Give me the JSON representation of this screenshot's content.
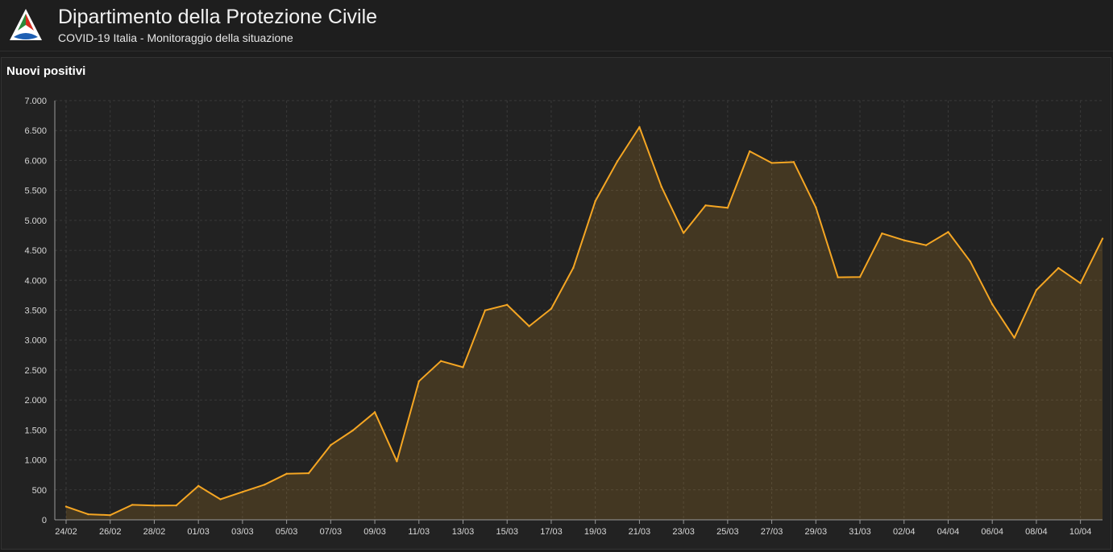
{
  "header": {
    "title": "Dipartimento della Protezione Civile",
    "subtitle": "COVID-19 Italia - Monitoraggio della situazione",
    "logo_icon": "protezione-civile-logo-icon"
  },
  "panel": {
    "title": "Nuovi positivi"
  },
  "colors": {
    "line": "#f5a623",
    "area": "#3a2f24",
    "background": "#222222",
    "grid": "#3a3a3a"
  },
  "chart_data": {
    "type": "area",
    "title": "Nuovi positivi",
    "xlabel": "",
    "ylabel": "",
    "ylim": [
      0,
      7000
    ],
    "yticks": [
      0,
      500,
      1000,
      1500,
      2000,
      2500,
      3000,
      3500,
      4000,
      4500,
      5000,
      5500,
      6000,
      6500,
      7000
    ],
    "ytick_labels": [
      "0",
      "500",
      "1.000",
      "1.500",
      "2.000",
      "2.500",
      "3.000",
      "3.500",
      "4.000",
      "4.500",
      "5.000",
      "5.500",
      "6.000",
      "6.500",
      "7.000"
    ],
    "grid": true,
    "legend": "none",
    "x": [
      "24/02",
      "25/02",
      "26/02",
      "27/02",
      "28/02",
      "29/02",
      "01/03",
      "02/03",
      "03/03",
      "04/03",
      "05/03",
      "06/03",
      "07/03",
      "08/03",
      "09/03",
      "10/03",
      "11/03",
      "12/03",
      "13/03",
      "14/03",
      "15/03",
      "16/03",
      "17/03",
      "18/03",
      "19/03",
      "20/03",
      "21/03",
      "22/03",
      "23/03",
      "24/03",
      "25/03",
      "26/03",
      "27/03",
      "28/03",
      "29/03",
      "30/03",
      "31/03",
      "01/04",
      "02/04",
      "03/04",
      "04/04",
      "05/04",
      "06/04",
      "07/04",
      "08/04",
      "09/04",
      "10/04",
      "11/04"
    ],
    "xtick_labels": [
      "24/02",
      "26/02",
      "28/02",
      "01/03",
      "03/03",
      "05/03",
      "07/03",
      "09/03",
      "11/03",
      "13/03",
      "15/03",
      "17/03",
      "19/03",
      "21/03",
      "23/03",
      "25/03",
      "27/03",
      "29/03",
      "31/03",
      "02/04",
      "04/04",
      "06/04",
      "08/04",
      "10/04"
    ],
    "series": [
      {
        "values": [
          221,
          93,
          78,
          250,
          238,
          240,
          566,
          342,
          466,
          587,
          769,
          778,
          1247,
          1492,
          1797,
          977,
          2313,
          2651,
          2547,
          3497,
          3590,
          3233,
          3526,
          4207,
          5322,
          5986,
          6557,
          5560,
          4789,
          5249,
          5210,
          6153,
          5959,
          5974,
          5217,
          4050,
          4053,
          4782,
          4668,
          4585,
          4805,
          4316,
          3599,
          3039,
          3836,
          4204,
          3951,
          4694
        ]
      }
    ]
  }
}
